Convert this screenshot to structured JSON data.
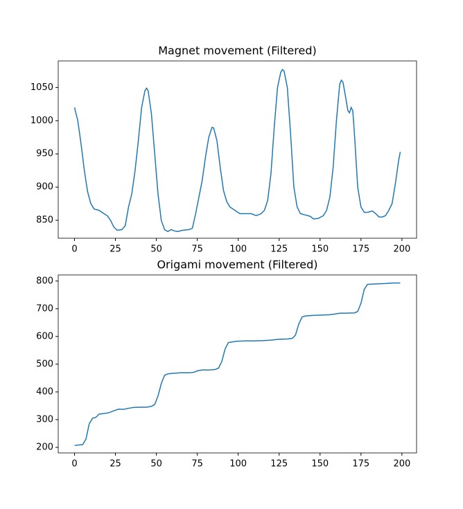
{
  "chart_data": [
    {
      "type": "line",
      "title": "Magnet movement (Filtered)",
      "x": [
        0,
        2,
        4,
        6,
        8,
        10,
        12,
        15,
        18,
        20,
        22,
        24,
        26,
        29,
        31,
        33,
        35,
        37,
        39,
        41,
        43,
        44,
        45,
        47,
        49,
        51,
        53,
        55,
        57,
        59,
        61,
        63,
        66,
        70,
        72,
        74,
        76,
        78,
        80,
        82,
        84,
        85,
        87,
        89,
        91,
        93,
        95,
        98,
        101,
        104,
        108,
        111,
        114,
        116,
        118,
        120,
        122,
        124,
        126,
        127,
        128,
        130,
        132,
        134,
        136,
        138,
        141,
        144,
        146,
        149,
        152,
        154,
        156,
        158,
        160,
        162,
        163,
        164,
        166,
        167,
        168,
        169,
        170,
        171,
        173,
        175,
        177,
        179,
        182,
        184,
        186,
        188,
        190,
        192,
        194,
        196,
        198,
        199
      ],
      "series": [
        {
          "name": "Magnet",
          "color": "#1f77b4",
          "values": [
            1020,
            1000,
            965,
            925,
            893,
            875,
            867,
            865,
            860,
            857,
            850,
            840,
            835,
            836,
            842,
            870,
            890,
            925,
            970,
            1020,
            1045,
            1049,
            1045,
            1010,
            950,
            890,
            850,
            836,
            833,
            836,
            834,
            833,
            835,
            836,
            838,
            860,
            885,
            910,
            945,
            975,
            990,
            989,
            970,
            930,
            895,
            878,
            870,
            865,
            860,
            860,
            860,
            857,
            860,
            865,
            880,
            920,
            990,
            1050,
            1073,
            1077,
            1075,
            1050,
            980,
            900,
            870,
            860,
            858,
            856,
            852,
            853,
            857,
            865,
            885,
            930,
            1000,
            1055,
            1061,
            1058,
            1030,
            1015,
            1012,
            1020,
            1015,
            980,
            900,
            870,
            862,
            862,
            864,
            860,
            855,
            855,
            857,
            865,
            875,
            905,
            940,
            953
          ]
        }
      ],
      "xlim": [
        -9.95,
        208.95
      ],
      "xticks": [
        0,
        25,
        50,
        75,
        100,
        125,
        150,
        175,
        200
      ],
      "ylim": [
        823,
        1090
      ],
      "yticks": [
        850,
        900,
        950,
        1000,
        1050
      ]
    },
    {
      "type": "line",
      "title": "Origami movement (Filtered)",
      "x": [
        0,
        5,
        7,
        9,
        11,
        13,
        15,
        18,
        21,
        24,
        27,
        30,
        33,
        36,
        40,
        44,
        47,
        49,
        51,
        53,
        55,
        57,
        60,
        65,
        70,
        73,
        75,
        78,
        82,
        86,
        88,
        90,
        92,
        94,
        97,
        100,
        105,
        110,
        115,
        120,
        125,
        130,
        133,
        135,
        137,
        139,
        141,
        145,
        150,
        155,
        158,
        162,
        166,
        171,
        173,
        175,
        177,
        179,
        182,
        186,
        190,
        195,
        199
      ],
      "series": [
        {
          "name": "Origami",
          "color": "#1f77b4",
          "values": [
            207,
            210,
            230,
            285,
            305,
            308,
            320,
            322,
            325,
            332,
            338,
            337,
            341,
            344,
            345,
            345,
            348,
            355,
            385,
            430,
            460,
            465,
            467,
            469,
            469,
            471,
            476,
            479,
            479,
            481,
            486,
            510,
            555,
            578,
            581,
            583,
            584,
            584,
            585,
            587,
            590,
            591,
            593,
            605,
            645,
            670,
            674,
            676,
            677,
            678,
            680,
            684,
            684,
            685,
            690,
            720,
            770,
            788,
            789,
            790,
            791,
            793,
            793
          ]
        }
      ],
      "xlim": [
        -9.95,
        208.95
      ],
      "xticks": [
        0,
        25,
        50,
        75,
        100,
        125,
        150,
        175,
        200
      ],
      "ylim": [
        180,
        822
      ],
      "yticks": [
        200,
        300,
        400,
        500,
        600,
        700,
        800
      ]
    }
  ]
}
